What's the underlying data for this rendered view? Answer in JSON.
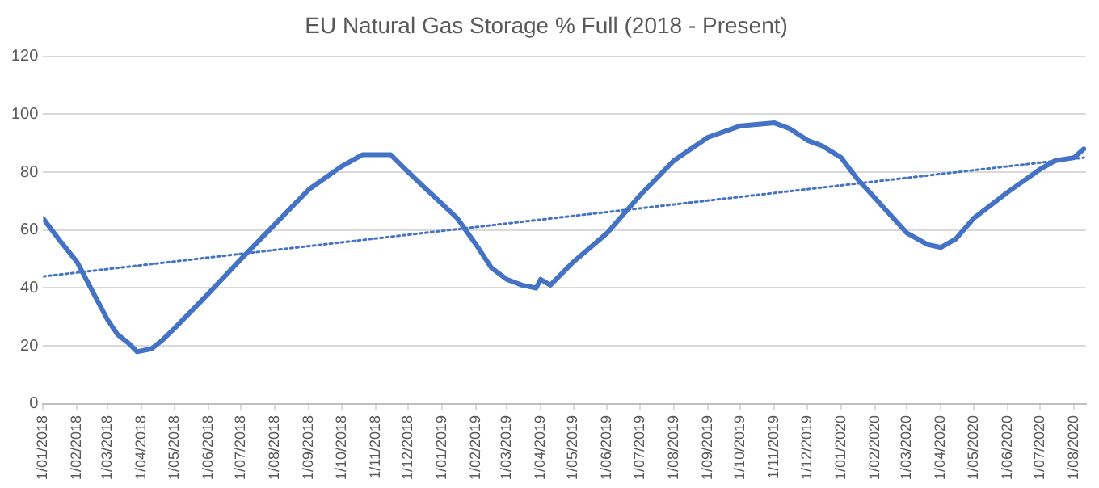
{
  "chart_data": {
    "type": "line",
    "title": "EU Natural Gas Storage % Full (2018 - Present)",
    "x": [
      "2018-01-01",
      "2018-01-15",
      "2018-02-01",
      "2018-02-15",
      "2018-03-01",
      "2018-03-10",
      "2018-03-20",
      "2018-03-28",
      "2018-04-10",
      "2018-04-20",
      "2018-05-01",
      "2018-06-01",
      "2018-07-01",
      "2018-08-01",
      "2018-09-01",
      "2018-10-01",
      "2018-10-20",
      "2018-11-15",
      "2018-12-01",
      "2018-12-15",
      "2019-01-01",
      "2019-01-15",
      "2019-02-01",
      "2019-02-15",
      "2019-03-01",
      "2019-03-15",
      "2019-03-28",
      "2019-04-01",
      "2019-04-10",
      "2019-05-01",
      "2019-06-01",
      "2019-07-01",
      "2019-08-01",
      "2019-09-01",
      "2019-10-01",
      "2019-11-01",
      "2019-11-15",
      "2019-12-01",
      "2019-12-15",
      "2020-01-01",
      "2020-01-15",
      "2020-02-01",
      "2020-03-01",
      "2020-03-20",
      "2020-04-01",
      "2020-04-15",
      "2020-05-01",
      "2020-06-01",
      "2020-07-01",
      "2020-07-15",
      "2020-08-01",
      "2020-08-10"
    ],
    "series": [
      {
        "color": "#4472c4",
        "line_style": "solid",
        "values": [
          64,
          57,
          49,
          39,
          29,
          24,
          21,
          18,
          19,
          22,
          26,
          38,
          50,
          62,
          74,
          82,
          86,
          86,
          80,
          75,
          69,
          64,
          55,
          47,
          43,
          41,
          40,
          43,
          41,
          49,
          59,
          72,
          84,
          92,
          96,
          97,
          95,
          91,
          89,
          85,
          78,
          71,
          59,
          55,
          54,
          57,
          64,
          73,
          81,
          84,
          85,
          88
        ]
      },
      {
        "color": "#4472c4",
        "line_style": "dotted",
        "x": [
          "2018-01-01",
          "2020-08-10"
        ],
        "values": [
          44,
          85
        ]
      }
    ],
    "xlim": [
      "2018-01-01",
      "2020-08-12"
    ],
    "xticks": [
      {
        "value": "2018-01-01",
        "label": "1/01/2018"
      },
      {
        "value": "2018-02-01",
        "label": "1/02/2018"
      },
      {
        "value": "2018-03-01",
        "label": "1/03/2018"
      },
      {
        "value": "2018-04-01",
        "label": "1/04/2018"
      },
      {
        "value": "2018-05-01",
        "label": "1/05/2018"
      },
      {
        "value": "2018-06-01",
        "label": "1/06/2018"
      },
      {
        "value": "2018-07-01",
        "label": "1/07/2018"
      },
      {
        "value": "2018-08-01",
        "label": "1/08/2018"
      },
      {
        "value": "2018-09-01",
        "label": "1/09/2018"
      },
      {
        "value": "2018-10-01",
        "label": "1/10/2018"
      },
      {
        "value": "2018-11-01",
        "label": "1/11/2018"
      },
      {
        "value": "2018-12-01",
        "label": "1/12/2018"
      },
      {
        "value": "2019-01-01",
        "label": "1/01/2019"
      },
      {
        "value": "2019-02-01",
        "label": "1/02/2019"
      },
      {
        "value": "2019-03-01",
        "label": "1/03/2019"
      },
      {
        "value": "2019-04-01",
        "label": "1/04/2019"
      },
      {
        "value": "2019-05-01",
        "label": "1/05/2019"
      },
      {
        "value": "2019-06-01",
        "label": "1/06/2019"
      },
      {
        "value": "2019-07-01",
        "label": "1/07/2019"
      },
      {
        "value": "2019-08-01",
        "label": "1/08/2019"
      },
      {
        "value": "2019-09-01",
        "label": "1/09/2019"
      },
      {
        "value": "2019-10-01",
        "label": "1/10/2019"
      },
      {
        "value": "2019-11-01",
        "label": "1/11/2019"
      },
      {
        "value": "2019-12-01",
        "label": "1/12/2019"
      },
      {
        "value": "2020-01-01",
        "label": "1/01/2020"
      },
      {
        "value": "2020-02-01",
        "label": "1/02/2020"
      },
      {
        "value": "2020-03-01",
        "label": "1/03/2020"
      },
      {
        "value": "2020-04-01",
        "label": "1/04/2020"
      },
      {
        "value": "2020-05-01",
        "label": "1/05/2020"
      },
      {
        "value": "2020-06-01",
        "label": "1/06/2020"
      },
      {
        "value": "2020-07-01",
        "label": "1/07/2020"
      },
      {
        "value": "2020-08-01",
        "label": "1/08/2020"
      }
    ],
    "ylim": [
      0,
      120
    ],
    "yticks": [
      0,
      20,
      40,
      60,
      80,
      100,
      120
    ],
    "grid": "y",
    "legend": false,
    "marker": "none"
  }
}
